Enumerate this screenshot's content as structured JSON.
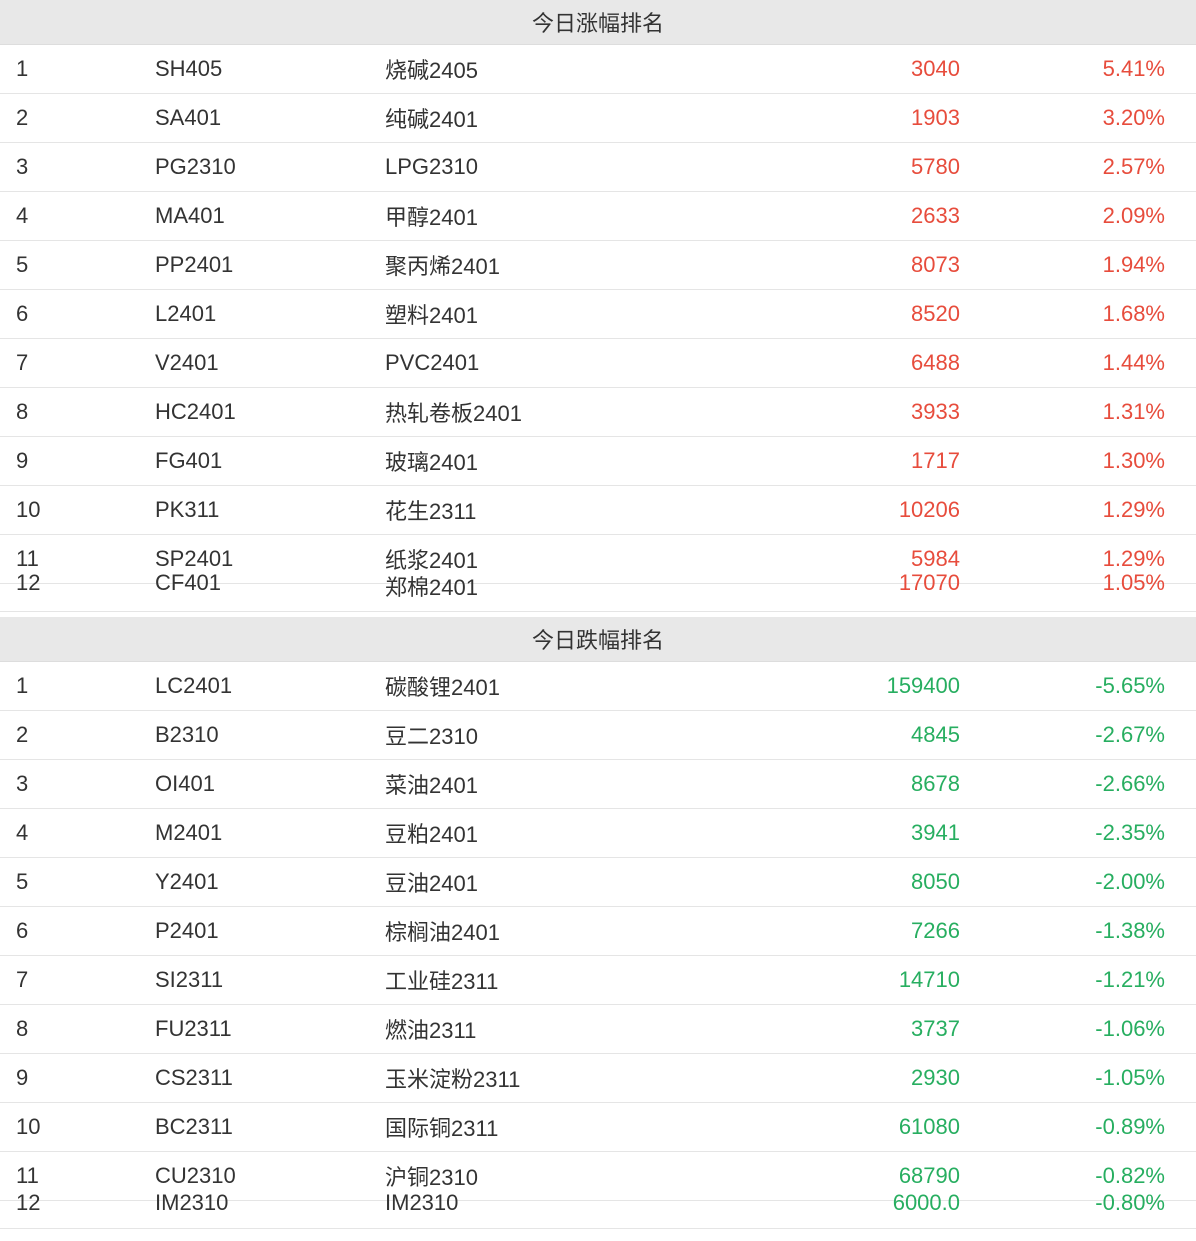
{
  "colors": {
    "up": "#e74c3c",
    "down": "#27ae60",
    "header_bg": "#e8e8e8",
    "text": "#333333",
    "border": "#e5e5e5"
  },
  "gainers": {
    "title": "今日涨幅排名",
    "rows": [
      {
        "rank": "1",
        "code": "SH405",
        "name": "烧碱2405",
        "price": "3040",
        "change": "5.41%"
      },
      {
        "rank": "2",
        "code": "SA401",
        "name": "纯碱2401",
        "price": "1903",
        "change": "3.20%"
      },
      {
        "rank": "3",
        "code": "PG2310",
        "name": "LPG2310",
        "price": "5780",
        "change": "2.57%"
      },
      {
        "rank": "4",
        "code": "MA401",
        "name": "甲醇2401",
        "price": "2633",
        "change": "2.09%"
      },
      {
        "rank": "5",
        "code": "PP2401",
        "name": "聚丙烯2401",
        "price": "8073",
        "change": "1.94%"
      },
      {
        "rank": "6",
        "code": "L2401",
        "name": "塑料2401",
        "price": "8520",
        "change": "1.68%"
      },
      {
        "rank": "7",
        "code": "V2401",
        "name": "PVC2401",
        "price": "6488",
        "change": "1.44%"
      },
      {
        "rank": "8",
        "code": "HC2401",
        "name": "热轧卷板2401",
        "price": "3933",
        "change": "1.31%"
      },
      {
        "rank": "9",
        "code": "FG401",
        "name": "玻璃2401",
        "price": "1717",
        "change": "1.30%"
      },
      {
        "rank": "10",
        "code": "PK311",
        "name": "花生2311",
        "price": "10206",
        "change": "1.29%"
      },
      {
        "rank": "11",
        "code": "SP2401",
        "name": "纸浆2401",
        "price": "5984",
        "change": "1.29%"
      }
    ],
    "partial": {
      "rank": "12",
      "code": "CF401",
      "name": "郑棉2401",
      "price": "17070",
      "change": "1.05%"
    }
  },
  "losers": {
    "title": "今日跌幅排名",
    "rows": [
      {
        "rank": "1",
        "code": "LC2401",
        "name": "碳酸锂2401",
        "price": "159400",
        "change": "-5.65%"
      },
      {
        "rank": "2",
        "code": "B2310",
        "name": "豆二2310",
        "price": "4845",
        "change": "-2.67%"
      },
      {
        "rank": "3",
        "code": "OI401",
        "name": "菜油2401",
        "price": "8678",
        "change": "-2.66%"
      },
      {
        "rank": "4",
        "code": "M2401",
        "name": "豆粕2401",
        "price": "3941",
        "change": "-2.35%"
      },
      {
        "rank": "5",
        "code": "Y2401",
        "name": "豆油2401",
        "price": "8050",
        "change": "-2.00%"
      },
      {
        "rank": "6",
        "code": "P2401",
        "name": "棕榈油2401",
        "price": "7266",
        "change": "-1.38%"
      },
      {
        "rank": "7",
        "code": "SI2311",
        "name": "工业硅2311",
        "price": "14710",
        "change": "-1.21%"
      },
      {
        "rank": "8",
        "code": "FU2311",
        "name": "燃油2311",
        "price": "3737",
        "change": "-1.06%"
      },
      {
        "rank": "9",
        "code": "CS2311",
        "name": "玉米淀粉2311",
        "price": "2930",
        "change": "-1.05%"
      },
      {
        "rank": "10",
        "code": "BC2311",
        "name": "国际铜2311",
        "price": "61080",
        "change": "-0.89%"
      },
      {
        "rank": "11",
        "code": "CU2310",
        "name": "沪铜2310",
        "price": "68790",
        "change": "-0.82%"
      }
    ],
    "partial": {
      "rank": "12",
      "code": "IM2310",
      "name": "IM2310",
      "price": "6000.0",
      "change": "-0.80%"
    }
  }
}
